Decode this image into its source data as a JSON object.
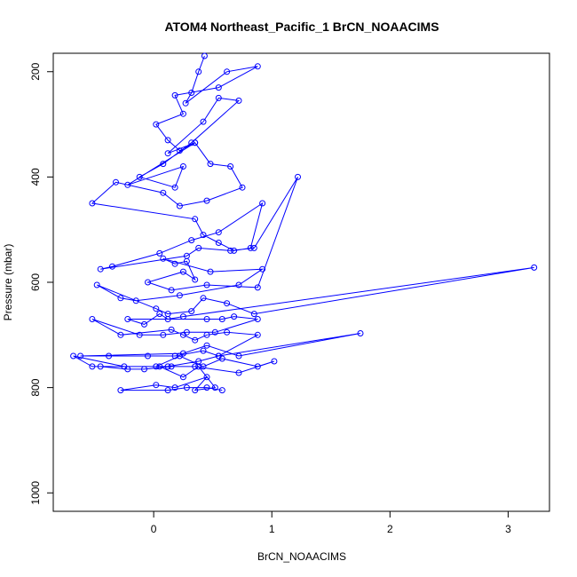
{
  "chart_data": {
    "type": "line",
    "title": "ATOM4 Northeast_Pacific_1 BrCN_NOAACIMS",
    "xlabel": "BrCN_NOAACIMS",
    "ylabel": "Pressure (mbar)",
    "xlim": [
      -0.85,
      3.35
    ],
    "ylim": [
      1035,
      165
    ],
    "y_reversed": true,
    "x_ticks": [
      0,
      1,
      2,
      3
    ],
    "x_tick_labels": [
      "0",
      "1",
      "2",
      "3"
    ],
    "y_ticks": [
      200,
      400,
      600,
      800,
      1000
    ],
    "y_tick_labels": [
      "200",
      "400",
      "600",
      "800",
      "1000"
    ],
    "grid": false,
    "legend": "none",
    "series_color": "#0000ff",
    "marker": "open-circle",
    "series": [
      {
        "x": [
          0.43,
          0.38,
          0.32,
          0.27,
          0.62,
          0.88,
          0.55,
          0.18,
          0.25,
          0.02,
          0.12,
          0.22,
          0.35,
          0.12,
          0.42,
          0.55,
          0.72,
          0.32,
          0.08,
          -0.12,
          0.18,
          0.25,
          -0.22,
          0.35,
          0.48,
          0.65,
          0.75,
          0.45,
          0.22,
          0.08,
          -0.32,
          -0.52,
          0.35,
          0.42,
          0.55,
          0.68,
          0.82,
          0.92,
          0.55,
          0.32,
          0.05,
          -0.35,
          -0.45,
          0.28,
          0.38,
          0.65,
          0.85,
          1.22,
          0.88,
          0.45,
          0.15,
          -0.05,
          0.25,
          0.35,
          0.28,
          0.18,
          0.08,
          0.48,
          0.92,
          0.72,
          0.22,
          -0.15,
          -0.28,
          -0.48,
          0.02,
          0.12,
          0.32,
          0.42,
          0.62,
          0.85,
          3.22,
          0.25,
          0.12,
          0.05,
          -0.08,
          -0.22,
          0.45,
          0.58,
          0.68,
          0.88,
          0.52,
          0.28,
          0.08,
          -0.12,
          -0.52,
          -0.28,
          0.15,
          0.25,
          0.35,
          0.45,
          0.62,
          0.88,
          0.55,
          0.42,
          0.18,
          -0.05,
          -0.38,
          -0.62,
          0.25,
          0.45,
          0.72,
          1.75,
          0.55,
          0.38,
          0.12,
          -0.25,
          -0.68,
          -0.52,
          0.02,
          0.22,
          0.42,
          0.58,
          0.88,
          1.02,
          0.72,
          0.35,
          0.15,
          -0.08,
          -0.22,
          -0.45,
          0.05,
          0.25,
          0.38,
          0.52,
          0.35,
          0.45,
          0.18,
          0.02,
          -0.28,
          0.12,
          0.28,
          0.45,
          0.58
        ],
        "y": [
          170,
          200,
          240,
          260,
          200,
          190,
          230,
          245,
          280,
          300,
          330,
          350,
          335,
          355,
          295,
          250,
          255,
          335,
          375,
          400,
          420,
          380,
          415,
          335,
          375,
          380,
          420,
          445,
          455,
          430,
          410,
          450,
          480,
          510,
          525,
          540,
          535,
          450,
          505,
          520,
          545,
          570,
          575,
          550,
          535,
          540,
          535,
          400,
          610,
          605,
          615,
          600,
          580,
          595,
          560,
          565,
          555,
          580,
          575,
          605,
          625,
          635,
          630,
          605,
          650,
          660,
          655,
          630,
          640,
          660,
          572,
          665,
          670,
          660,
          680,
          670,
          670,
          670,
          665,
          670,
          695,
          695,
          700,
          700,
          670,
          700,
          690,
          700,
          710,
          700,
          695,
          700,
          740,
          730,
          740,
          740,
          740,
          740,
          735,
          720,
          740,
          697,
          740,
          750,
          760,
          760,
          740,
          760,
          760,
          740,
          760,
          745,
          760,
          750,
          772,
          760,
          760,
          765,
          765,
          760,
          760,
          780,
          760,
          800,
          805,
          780,
          800,
          795,
          805,
          805,
          800,
          800,
          805
        ]
      }
    ]
  }
}
